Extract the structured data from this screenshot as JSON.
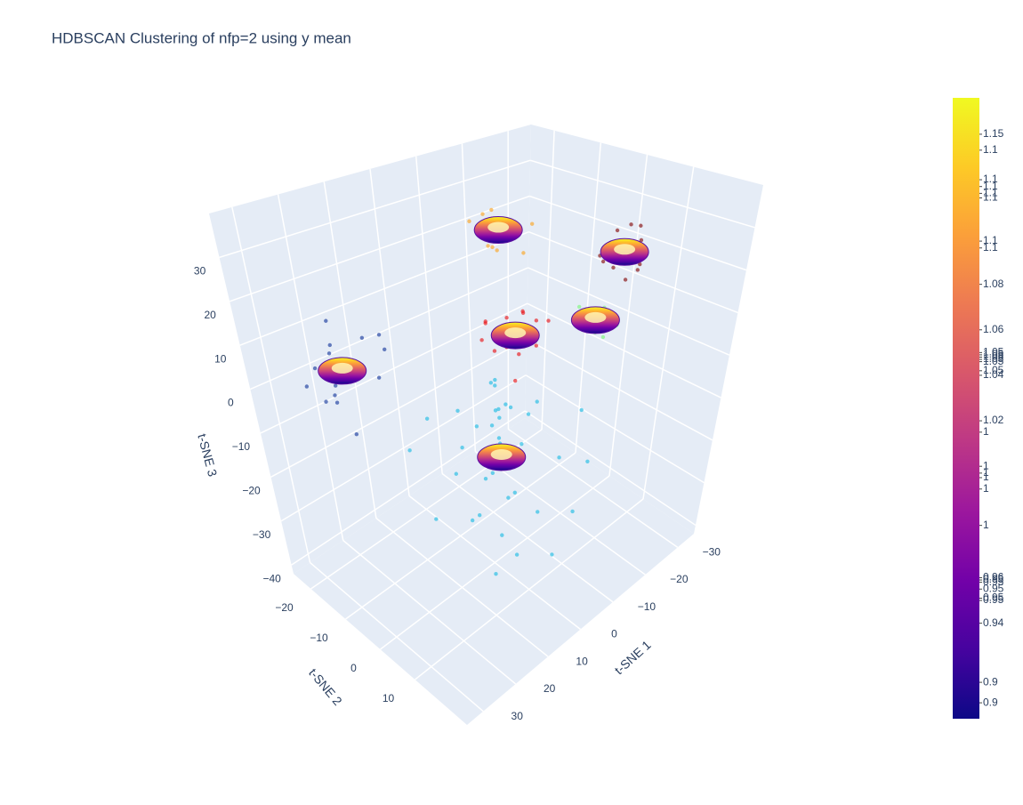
{
  "chart_data": {
    "type": "scatter3d",
    "title": "HDBSCAN Clustering of nfp=2 using y mean",
    "xlabel": "t-SNE 1",
    "ylabel": "t-SNE 2",
    "zlabel": "t-SNE 3",
    "xlim": [
      -35,
      35
    ],
    "ylim": [
      -25,
      25
    ],
    "zlim": [
      -42,
      40
    ],
    "xticks": [
      {
        "value": -30,
        "label": "−30"
      },
      {
        "value": -20,
        "label": "−20"
      },
      {
        "value": -10,
        "label": "−10"
      },
      0,
      10,
      20,
      30
    ],
    "yticks": [
      {
        "value": -20,
        "label": "−20"
      },
      {
        "value": -10,
        "label": "−10"
      },
      0,
      10
    ],
    "zticks": [
      {
        "value": -40,
        "label": "−40"
      },
      {
        "value": -30,
        "label": "−30"
      },
      {
        "value": -20,
        "label": "−20"
      },
      {
        "value": -10,
        "label": "−10"
      },
      0,
      10,
      20,
      30
    ],
    "grid": true,
    "series": [
      {
        "color": "#22bde3",
        "x": [
          -18,
          -12,
          -6,
          0,
          6,
          12,
          -15,
          -9,
          -3,
          3,
          9,
          15,
          -20,
          -10,
          0,
          10,
          -14,
          -4,
          6,
          16,
          -8,
          2,
          12,
          -16,
          -6,
          4,
          -2,
          1,
          -1,
          3,
          0,
          -3,
          2,
          -5,
          5,
          -12
        ],
        "y": [
          -14,
          -10,
          -6,
          -2,
          2,
          6,
          -5,
          -1,
          3,
          7,
          11,
          15,
          4,
          8,
          12,
          16,
          -12,
          -8,
          -4,
          0,
          14,
          18,
          -10,
          10,
          -15,
          -13,
          0,
          2,
          -1,
          3,
          1,
          -2,
          4,
          0,
          -3,
          0
        ],
        "z": [
          -22,
          -25,
          -28,
          -24,
          -27,
          -23,
          -18,
          -20,
          -26,
          -22,
          -25,
          -28,
          -15,
          -19,
          -24,
          -26,
          -20,
          -17,
          -21,
          -24,
          -27,
          -29,
          -16,
          -22,
          -18,
          -14,
          -10,
          -6,
          -2,
          -8,
          0,
          -4,
          -12,
          -9,
          -15,
          -11
        ]
      },
      {
        "color": "#e8191c",
        "x": [
          -8,
          -5,
          -2,
          1,
          4,
          -6,
          -3,
          0,
          3,
          -7,
          -1,
          2,
          -4,
          0,
          -2,
          1
        ],
        "y": [
          0,
          3,
          6,
          9,
          2,
          5,
          8,
          -1,
          4,
          7,
          10,
          1,
          3,
          6,
          2,
          5
        ],
        "z": [
          12,
          14,
          10,
          13,
          11,
          8,
          15,
          12,
          9,
          13,
          11,
          14,
          5,
          2,
          7,
          16
        ]
      },
      {
        "color": "#fba625",
        "x": [
          -12,
          -9,
          -6,
          -3,
          0,
          -10,
          -7,
          -4,
          -1,
          -11,
          -8,
          -5,
          -2,
          -6,
          -3,
          -9
        ],
        "y": [
          -8,
          -6,
          -4,
          -2,
          0,
          -9,
          -5,
          -3,
          1,
          -1,
          -7,
          -2,
          -6,
          2,
          -4,
          -3
        ],
        "z": [
          29,
          31,
          33,
          28,
          30,
          32,
          27,
          34,
          29,
          31,
          28,
          30,
          33,
          27,
          35,
          30
        ]
      },
      {
        "color": "#860e0e",
        "x": [
          -20,
          -17,
          -14,
          -11,
          -8,
          -19,
          -16,
          -13,
          -10,
          -18,
          -15,
          -12,
          -9,
          -16,
          -14,
          -12
        ],
        "y": [
          12,
          14,
          16,
          18,
          20,
          15,
          17,
          19,
          21,
          11,
          13,
          22,
          16,
          18,
          20,
          14
        ],
        "z": [
          32,
          30,
          28,
          31,
          29,
          33,
          27,
          30,
          26,
          31,
          28,
          29,
          30,
          25,
          33,
          27
        ]
      },
      {
        "color": "#7ef77e",
        "x": [
          -13,
          -11,
          -9,
          -7,
          -12,
          -10,
          -8,
          -11,
          -9,
          -10
        ],
        "y": [
          12,
          14,
          16,
          18,
          15,
          17,
          13,
          19,
          11,
          15
        ],
        "z": [
          14,
          16,
          13,
          15,
          17,
          12,
          18,
          15,
          14,
          16
        ]
      },
      {
        "color": "#1c3d9e",
        "x": [
          28,
          30,
          32,
          34,
          29,
          31,
          33,
          27,
          30,
          32,
          34,
          28,
          31,
          33,
          26,
          29,
          24,
          25
        ],
        "y": [
          -10,
          -8,
          -6,
          -4,
          -9,
          -7,
          -5,
          -3,
          -11,
          -2,
          -8,
          -6,
          -4,
          -12,
          -1,
          -9,
          -2,
          0
        ],
        "z": [
          14,
          12,
          10,
          8,
          6,
          4,
          16,
          18,
          2,
          0,
          12,
          8,
          14,
          6,
          10,
          20,
          18,
          16
        ]
      }
    ],
    "colorbar": {
      "colorscale": "plasma",
      "clim": [
        0.893,
        1.166
      ],
      "ticks": [
        1.15,
        {
          "value": 1.143,
          "label": "1.1"
        },
        {
          "value": 1.13,
          "label": "1.1"
        },
        {
          "value": 1.127,
          "label": "1.1"
        },
        {
          "value": 1.124,
          "label": "1.1"
        },
        {
          "value": 1.122,
          "label": "1.1"
        },
        {
          "value": 1.084,
          "label": "1.08"
        },
        {
          "value": 1.103,
          "label": "1.1"
        },
        1.1,
        {
          "value": 1.064,
          "label": "1.06"
        },
        {
          "value": 1.054,
          "label": "1.05"
        },
        {
          "value": 1.053,
          "label": "1.05"
        },
        {
          "value": 1.052,
          "label": "1.05"
        },
        {
          "value": 1.051,
          "label": "1.05"
        },
        {
          "value": 1.044,
          "label": "1.04"
        },
        1.05,
        {
          "value": 1.046,
          "label": "1.05"
        },
        {
          "value": 1.024,
          "label": "1.02"
        },
        {
          "value": 1.019,
          "label": "1"
        },
        {
          "value": 1.004,
          "label": "1"
        },
        {
          "value": 1.001,
          "label": "1"
        },
        {
          "value": 0.999,
          "label": "1"
        },
        {
          "value": 0.994,
          "label": "1"
        },
        {
          "value": 0.978,
          "label": "1"
        },
        {
          "value": 0.954,
          "label": "0.95"
        },
        {
          "value": 0.953,
          "label": "0.95"
        },
        0.95,
        {
          "value": 0.946,
          "label": "0.95"
        },
        {
          "value": 0.945,
          "label": "0.95"
        },
        {
          "value": 0.955,
          "label": "0.96"
        },
        {
          "value": 0.909,
          "label": "0.9"
        },
        {
          "value": 0.935,
          "label": "0.94"
        },
        0.9
      ]
    }
  }
}
